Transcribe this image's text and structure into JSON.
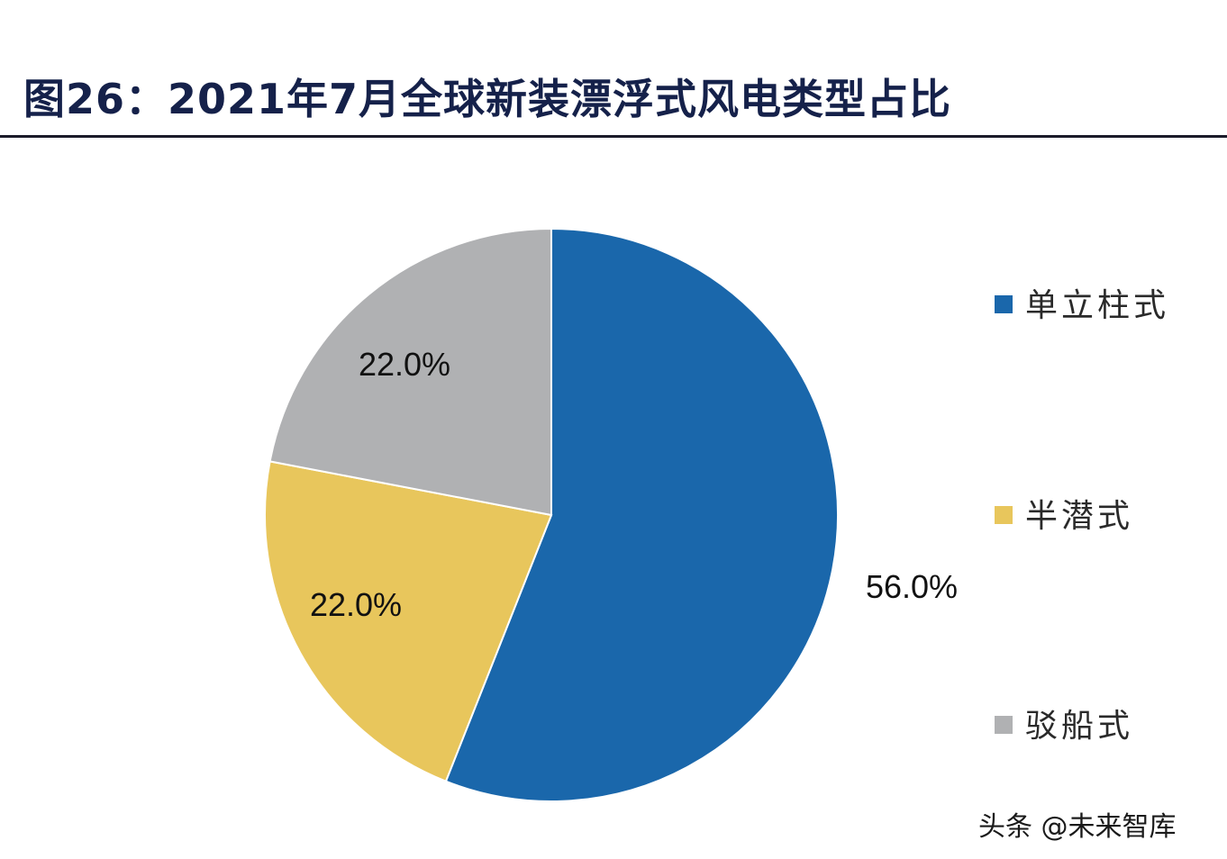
{
  "header": {
    "title": "图26：2021年7月全球新装漂浮式风电类型占比"
  },
  "chart_data": {
    "type": "pie",
    "title": "图26：2021年7月全球新装漂浮式风电类型占比",
    "categories": [
      "单立柱式",
      "半潜式",
      "驳船式"
    ],
    "values": [
      56.0,
      22.0,
      22.0
    ],
    "labels": [
      "56.0%",
      "22.0%",
      "22.0%"
    ],
    "colors": [
      "#1a67ab",
      "#e8c65c",
      "#b0b1b3"
    ],
    "start_angle": "12 o'clock, clockwise",
    "legend_position": "right"
  },
  "watermark": "头条 @未来智库"
}
